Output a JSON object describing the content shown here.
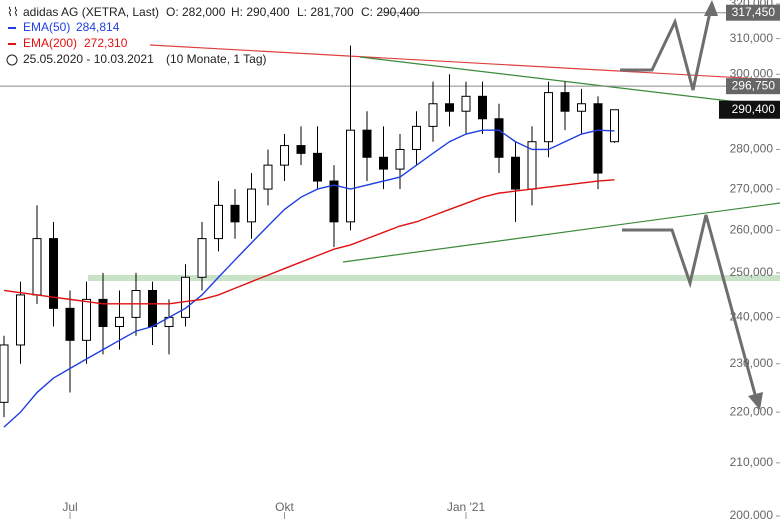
{
  "chart_data": {
    "type": "candlestick",
    "title": "adidas AG (XETRA, Last)",
    "ohlc_labels": [
      "O: 282,000",
      "H: 290,400",
      "L: 281,700",
      "C: 290,400"
    ],
    "period": "25.05.2020 - 10.03.2021",
    "period_note": "(10 Monate, 1 Tag)",
    "log": true,
    "ylim": [
      200000,
      320000
    ],
    "yticks": [
      {
        "value": 200000,
        "label": "200,000"
      },
      {
        "value": 210000,
        "label": "210,000"
      },
      {
        "value": 220000,
        "label": "220,000"
      },
      {
        "value": 230000,
        "label": "230,000"
      },
      {
        "value": 240000,
        "label": "240,000"
      },
      {
        "value": 250000,
        "label": "250,000"
      },
      {
        "value": 260000,
        "label": "260,000"
      },
      {
        "value": 270000,
        "label": "270,000"
      },
      {
        "value": 280000,
        "label": "280,000"
      },
      {
        "value": 290000,
        "label": "290,000"
      },
      {
        "value": 300000,
        "label": "300,000"
      },
      {
        "value": 310000,
        "label": "310,000"
      },
      {
        "value": 320000,
        "label": "320,000"
      }
    ],
    "categories": [
      null,
      null,
      null,
      null,
      "Jul",
      null,
      null,
      null,
      null,
      null,
      null,
      null,
      null,
      null,
      null,
      null,
      null,
      "Okt",
      null,
      null,
      null,
      null,
      null,
      null,
      null,
      null,
      null,
      null,
      "Jan '21",
      null,
      null,
      null,
      null,
      null,
      null,
      null,
      null,
      null
    ],
    "open": [
      222000,
      234000,
      245000,
      258000,
      242000,
      235000,
      244000,
      238000,
      240000,
      246000,
      238000,
      240000,
      249000,
      258000,
      266000,
      262000,
      270000,
      276000,
      281000,
      279000,
      272000,
      262000,
      285000,
      278000,
      275000,
      280000,
      286000,
      292000,
      290000,
      294000,
      288000,
      278000,
      270000,
      282000,
      295000,
      290000,
      292000,
      282000
    ],
    "high": [
      236000,
      248000,
      266000,
      262000,
      246000,
      248000,
      250000,
      246000,
      250000,
      248000,
      244000,
      252000,
      262000,
      272000,
      270000,
      274000,
      280000,
      284000,
      286000,
      286000,
      276000,
      308000,
      290000,
      286000,
      284000,
      290000,
      298000,
      300000,
      298000,
      298000,
      292000,
      282000,
      286000,
      298000,
      298000,
      296000,
      294000,
      290400
    ],
    "low": [
      219000,
      230000,
      243000,
      238000,
      224000,
      230000,
      232000,
      233000,
      236000,
      234000,
      232000,
      238000,
      246000,
      255000,
      258000,
      258000,
      266000,
      272000,
      276000,
      270000,
      256000,
      260000,
      272000,
      270000,
      270000,
      276000,
      282000,
      286000,
      284000,
      284000,
      274000,
      262000,
      266000,
      278000,
      285000,
      284000,
      270000,
      281700
    ],
    "close": [
      234000,
      245000,
      258000,
      242000,
      235000,
      244000,
      238000,
      240000,
      246000,
      238000,
      240000,
      249000,
      258000,
      266000,
      262000,
      270000,
      276000,
      281000,
      279000,
      272000,
      262000,
      285000,
      278000,
      275000,
      280000,
      286000,
      292000,
      290000,
      294000,
      288000,
      278000,
      270000,
      282000,
      295000,
      290000,
      292000,
      274000,
      290400
    ],
    "up_color": "#ffffff",
    "down_color": "#000000",
    "lines": [
      {
        "name": "EMA(50)",
        "color": "#1f3fe0",
        "value_label": "284,814",
        "values": [
          217000,
          220000,
          224000,
          227000,
          229000,
          231000,
          233000,
          235000,
          237000,
          238000,
          240000,
          242000,
          245000,
          249000,
          253000,
          257000,
          261000,
          265000,
          268000,
          270000,
          271000,
          270000,
          271000,
          272000,
          273000,
          276000,
          279000,
          282000,
          284000,
          285000,
          285000,
          282000,
          280000,
          280000,
          282000,
          284000,
          285000,
          284814
        ]
      },
      {
        "name": "EMA(200)",
        "color": "#e01010",
        "value_label": "272,310",
        "values": [
          246000,
          245500,
          245000,
          244500,
          244000,
          243500,
          243000,
          243000,
          243000,
          243000,
          243000,
          243500,
          244000,
          245000,
          246500,
          248000,
          249500,
          251000,
          252500,
          254000,
          255500,
          256500,
          258000,
          259500,
          261000,
          262000,
          263500,
          265000,
          266500,
          268000,
          269000,
          269500,
          270000,
          270500,
          271000,
          271500,
          272000,
          272310
        ]
      }
    ],
    "levels": [
      {
        "value": 317450,
        "label": "317,450"
      },
      {
        "value": 296750,
        "label": "296,750"
      }
    ],
    "last_price": {
      "value": 290400,
      "label": "290,400"
    }
  }
}
